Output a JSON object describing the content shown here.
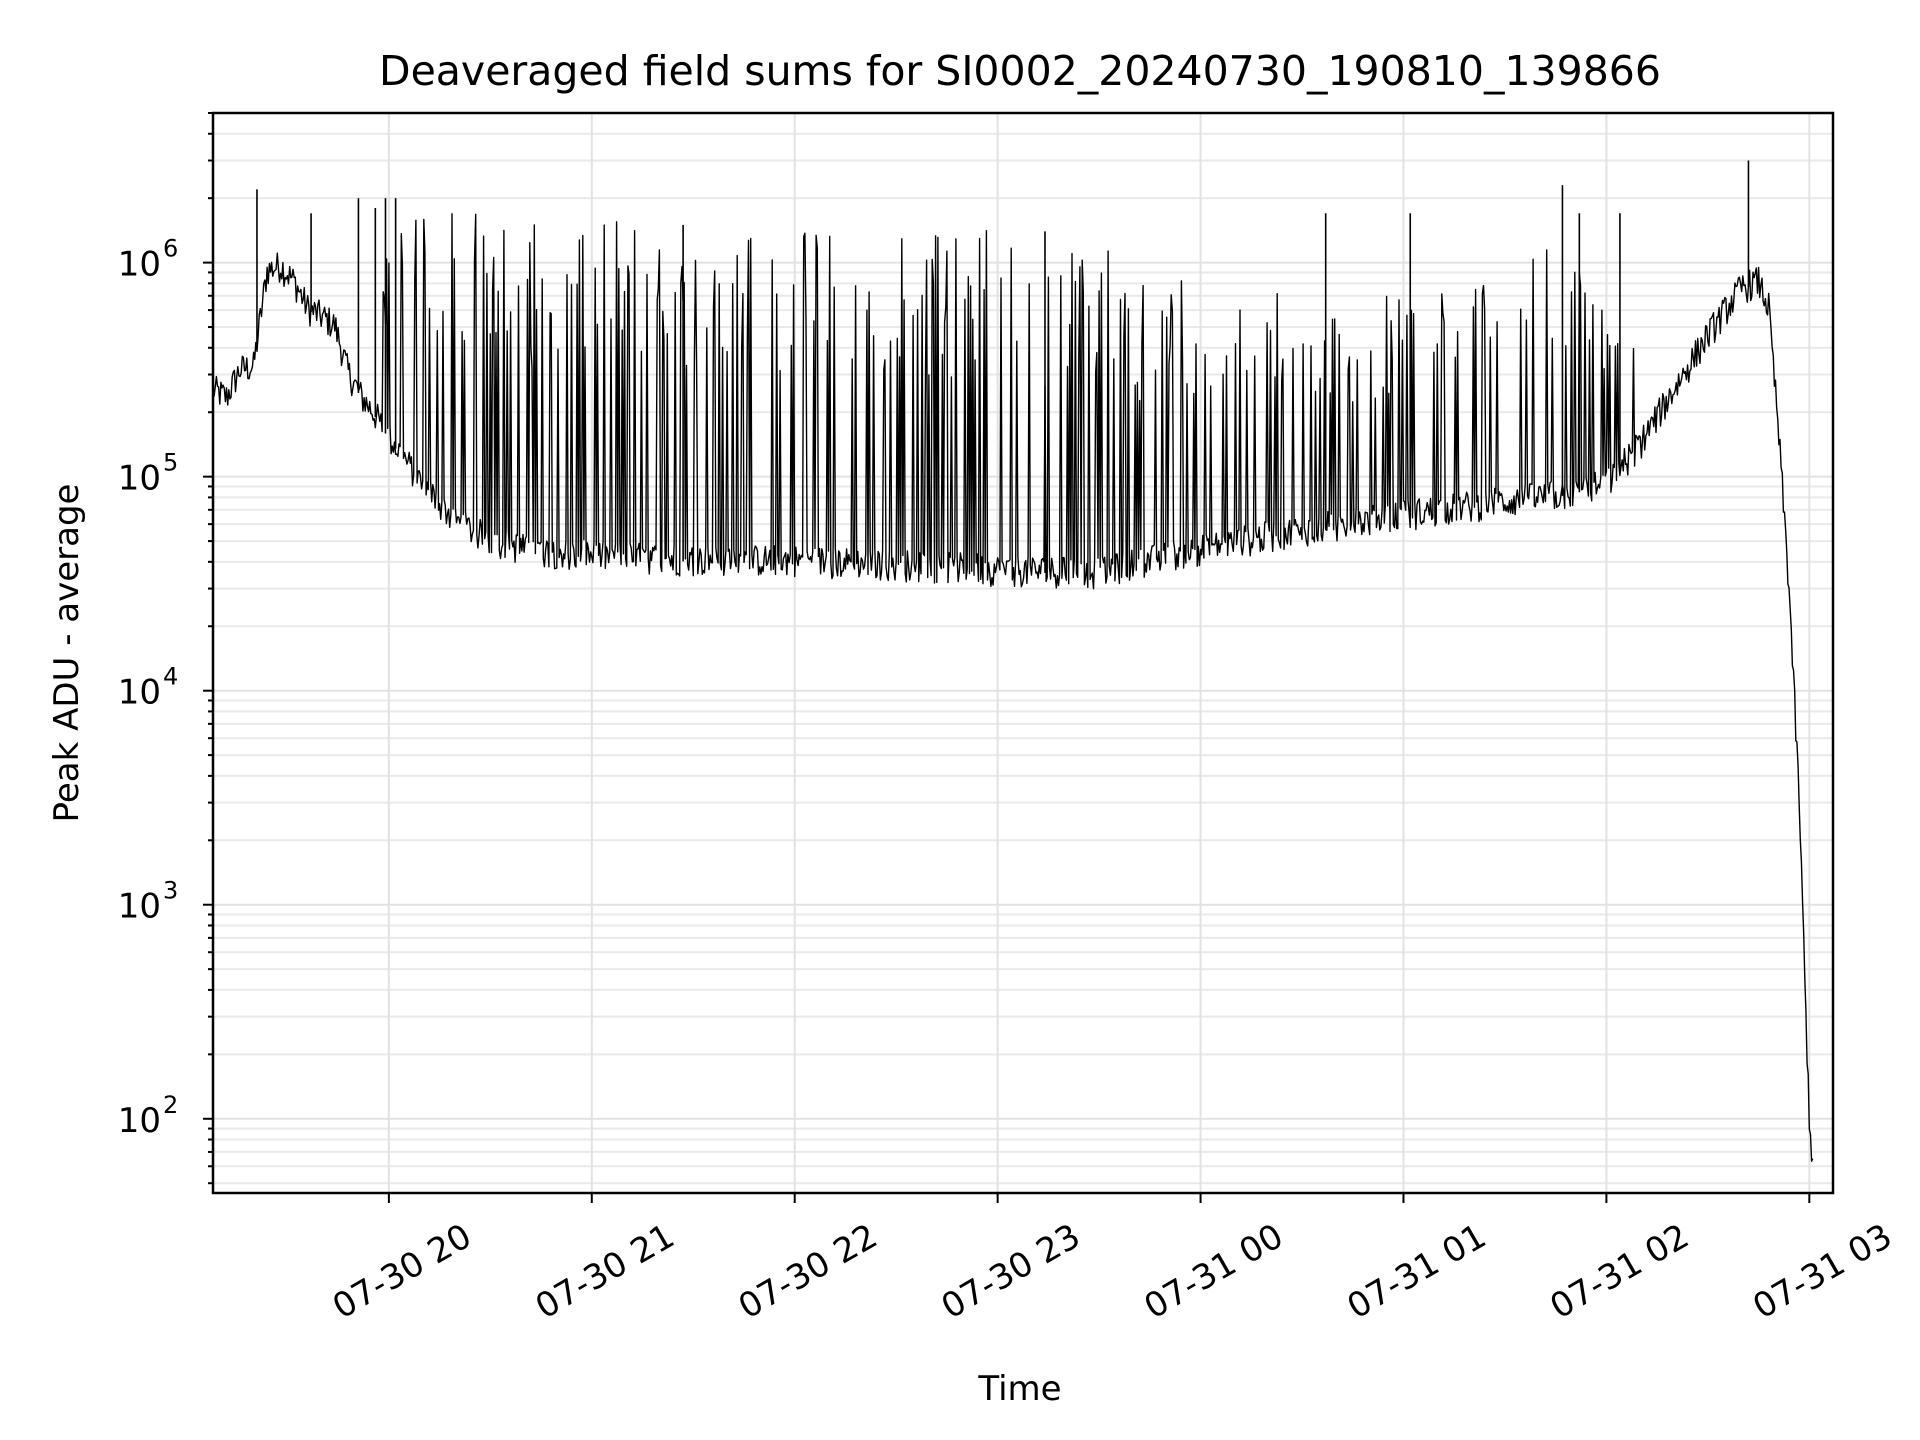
{
  "chart_data": {
    "type": "line",
    "title": "Deaveraged field sums for SI0002_20240730_190810_139866",
    "xlabel": "Time",
    "ylabel": "Peak ADU - average",
    "yscale": "log",
    "xlim": [
      "2024-07-30 19:08",
      "2024-07-31 03:07"
    ],
    "ylim": [
      45,
      5000000
    ],
    "grid": true,
    "x_ticks": [
      {
        "value": "2024-07-30 20:00",
        "label": "07-30 20"
      },
      {
        "value": "2024-07-30 21:00",
        "label": "07-30 21"
      },
      {
        "value": "2024-07-30 22:00",
        "label": "07-30 22"
      },
      {
        "value": "2024-07-30 23:00",
        "label": "07-30 23"
      },
      {
        "value": "2024-07-31 00:00",
        "label": "07-31 00"
      },
      {
        "value": "2024-07-31 01:00",
        "label": "07-31 01"
      },
      {
        "value": "2024-07-31 02:00",
        "label": "07-31 02"
      },
      {
        "value": "2024-07-31 03:00",
        "label": "07-31 03"
      }
    ],
    "y_ticks": [
      {
        "value": 100,
        "base": "10",
        "exp": "2"
      },
      {
        "value": 1000,
        "base": "10",
        "exp": "3"
      },
      {
        "value": 10000,
        "base": "10",
        "exp": "4"
      },
      {
        "value": 100000,
        "base": "10",
        "exp": "5"
      },
      {
        "value": 1000000,
        "base": "10",
        "exp": "6"
      }
    ],
    "series": [
      {
        "color": "#000000",
        "x": [
          "2024-07-30 19:08",
          "2024-07-30 19:12",
          "2024-07-30 19:16",
          "2024-07-30 19:20",
          "2024-07-30 19:24",
          "2024-07-30 19:28",
          "2024-07-30 19:32",
          "2024-07-30 19:36",
          "2024-07-30 19:40",
          "2024-07-30 19:44",
          "2024-07-30 19:48",
          "2024-07-30 19:52",
          "2024-07-30 19:56",
          "2024-07-30 20:00",
          "2024-07-30 20:10",
          "2024-07-30 20:20",
          "2024-07-30 20:30",
          "2024-07-30 20:40",
          "2024-07-30 21:00",
          "2024-07-30 21:30",
          "2024-07-30 22:00",
          "2024-07-30 22:30",
          "2024-07-30 23:00",
          "2024-07-30 23:30",
          "2024-07-30 23:45",
          "2024-07-31 00:00",
          "2024-07-31 00:15",
          "2024-07-31 00:30",
          "2024-07-31 00:45",
          "2024-07-31 01:00",
          "2024-07-31 01:15",
          "2024-07-31 01:30",
          "2024-07-31 01:45",
          "2024-07-31 02:00",
          "2024-07-31 02:10",
          "2024-07-31 02:20",
          "2024-07-31 02:30",
          "2024-07-31 02:40",
          "2024-07-31 02:45",
          "2024-07-31 02:48",
          "2024-07-31 02:51",
          "2024-07-31 02:54",
          "2024-07-31 02:57",
          "2024-07-31 02:59",
          "2024-07-31 03:00",
          "2024-07-31 03:01"
        ],
        "baseline": [
          250000,
          230000,
          310000,
          320000,
          900000,
          950000,
          800000,
          600000,
          550000,
          500000,
          300000,
          230000,
          190000,
          150000,
          90000,
          60000,
          50000,
          45000,
          42000,
          40000,
          40000,
          38000,
          36000,
          35000,
          40000,
          45000,
          50000,
          55000,
          60000,
          65000,
          70000,
          75000,
          80000,
          90000,
          140000,
          250000,
          450000,
          750000,
          800000,
          600000,
          150000,
          30000,
          3000,
          300,
          100,
          60
        ],
        "envelope_top": [
          400000,
          380000,
          420000,
          450000,
          1100000,
          1000000,
          900000,
          750000,
          700000,
          650000,
          400000,
          300000,
          250000,
          1800000,
          1800000,
          1700000,
          1700000,
          1600000,
          1600000,
          1600000,
          1500000,
          1500000,
          1400000,
          1200000,
          900000,
          800000,
          1400000,
          700000,
          600000,
          800000,
          700000,
          900000,
          1500000,
          600000,
          400000,
          500000,
          800000,
          900000,
          900000,
          700000,
          200000,
          40000,
          4000,
          400,
          120,
          70
        ],
        "peaks": [
          {
            "x": "2024-07-30 19:21",
            "y": 2200000
          },
          {
            "x": "2024-07-30 19:37",
            "y": 1700000
          },
          {
            "x": "2024-07-30 19:51",
            "y": 2000000
          },
          {
            "x": "2024-07-30 19:56",
            "y": 1800000
          },
          {
            "x": "2024-07-30 19:59",
            "y": 2000000
          },
          {
            "x": "2024-07-30 20:02",
            "y": 2000000
          },
          {
            "x": "2024-07-30 21:27",
            "y": 1500000
          },
          {
            "x": "2024-07-30 23:14",
            "y": 1400000
          },
          {
            "x": "2024-07-31 00:37",
            "y": 1700000
          },
          {
            "x": "2024-07-31 01:02",
            "y": 1700000
          },
          {
            "x": "2024-07-31 01:47",
            "y": 2300000
          },
          {
            "x": "2024-07-31 01:52",
            "y": 1700000
          },
          {
            "x": "2024-07-31 02:04",
            "y": 1700000
          },
          {
            "x": "2024-07-31 02:42",
            "y": 3000000
          }
        ]
      }
    ]
  }
}
